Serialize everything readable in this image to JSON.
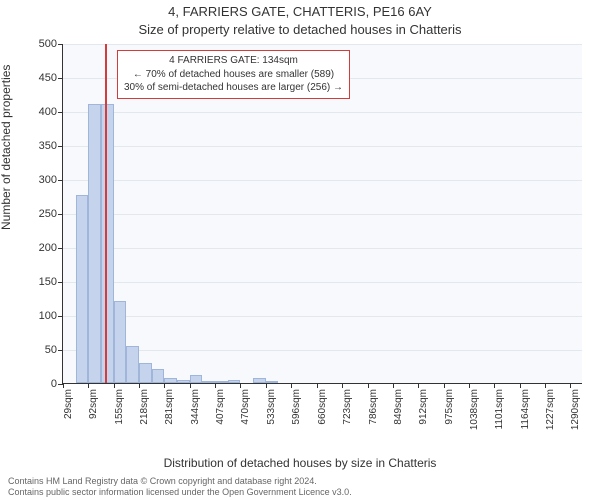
{
  "titles": {
    "line1": "4, FARRIERS GATE, CHATTERIS, PE16 6AY",
    "line2": "Size of property relative to detached houses in Chatteris"
  },
  "axes": {
    "ylabel": "Number of detached properties",
    "xlabel": "Distribution of detached houses by size in Chatteris"
  },
  "chart": {
    "type": "histogram",
    "background_color": "#f7f9fc",
    "grid_color": "#e3e7ee",
    "bar_fill": "#c5d4ec",
    "bar_border": "#9fb5da",
    "marker_color": "#d43b3b",
    "ylim": [
      0,
      500
    ],
    "yticks": [
      0,
      50,
      100,
      150,
      200,
      250,
      300,
      350,
      400,
      450,
      500
    ],
    "x_range": [
      29,
      1321.5
    ],
    "x_tick_step": 63,
    "x_ticks": [
      29,
      92,
      155,
      218,
      281,
      344,
      407,
      470,
      533,
      596,
      660,
      723,
      786,
      849,
      912,
      975,
      1038,
      1101,
      1164,
      1227,
      1290
    ],
    "x_tick_labels": [
      "29sqm",
      "92sqm",
      "155sqm",
      "218sqm",
      "281sqm",
      "344sqm",
      "407sqm",
      "470sqm",
      "533sqm",
      "596sqm",
      "660sqm",
      "723sqm",
      "786sqm",
      "849sqm",
      "912sqm",
      "975sqm",
      "1038sqm",
      "1101sqm",
      "1164sqm",
      "1227sqm",
      "1290sqm"
    ],
    "bar_width_sqm": 31.5,
    "bars": [
      {
        "start": 29,
        "value": 0
      },
      {
        "start": 60.5,
        "value": 277
      },
      {
        "start": 92,
        "value": 410
      },
      {
        "start": 123.5,
        "value": 410
      },
      {
        "start": 155,
        "value": 120
      },
      {
        "start": 186.5,
        "value": 55
      },
      {
        "start": 218,
        "value": 30
      },
      {
        "start": 249.5,
        "value": 20
      },
      {
        "start": 281,
        "value": 8
      },
      {
        "start": 312.5,
        "value": 5
      },
      {
        "start": 344,
        "value": 12
      },
      {
        "start": 375.5,
        "value": 2
      },
      {
        "start": 407,
        "value": 2
      },
      {
        "start": 438.5,
        "value": 4
      },
      {
        "start": 470,
        "value": 0
      },
      {
        "start": 501.5,
        "value": 8
      },
      {
        "start": 533,
        "value": 2
      },
      {
        "start": 564.5,
        "value": 0
      },
      {
        "start": 596,
        "value": 0
      },
      {
        "start": 627.5,
        "value": 0
      },
      {
        "start": 659,
        "value": 0
      },
      {
        "start": 690.5,
        "value": 0
      },
      {
        "start": 722,
        "value": 0
      },
      {
        "start": 753.5,
        "value": 0
      },
      {
        "start": 785,
        "value": 0
      },
      {
        "start": 816.5,
        "value": 0
      },
      {
        "start": 848,
        "value": 0
      },
      {
        "start": 879.5,
        "value": 0
      },
      {
        "start": 911,
        "value": 0
      },
      {
        "start": 942.5,
        "value": 0
      },
      {
        "start": 974,
        "value": 0
      }
    ],
    "marker_x": 134
  },
  "annotation": {
    "line1": "4 FARRIERS GATE: 134sqm",
    "line2": "← 70% of detached houses are smaller (589)",
    "line3": "30% of semi-detached houses are larger (256) →",
    "border_color": "#d43b3b",
    "bg_color": "#ffffff",
    "fontsize": 10
  },
  "footer": {
    "line1": "Contains HM Land Registry data © Crown copyright and database right 2024.",
    "line2": "Contains public sector information licensed under the Open Government Licence v3.0."
  }
}
